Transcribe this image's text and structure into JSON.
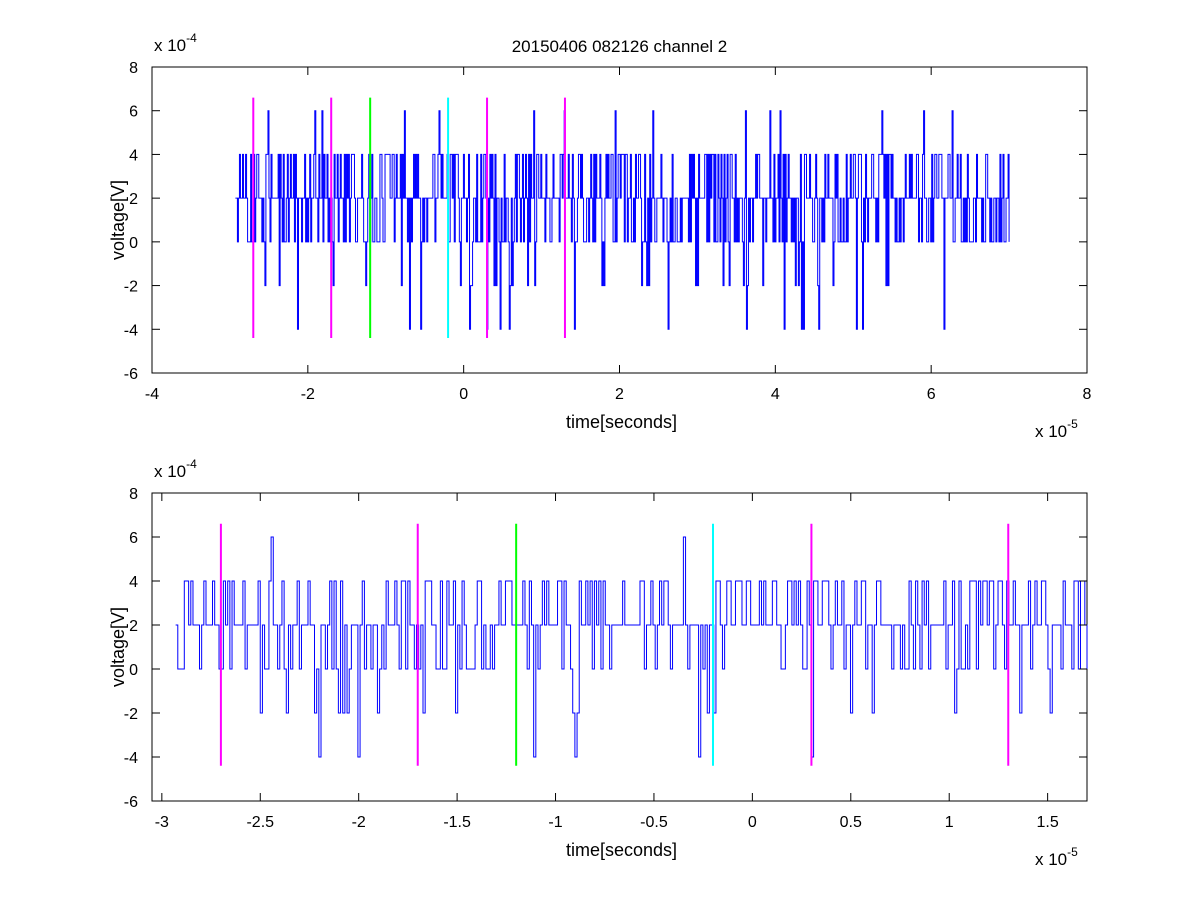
{
  "chart_data": [
    {
      "type": "line",
      "title": "20150406 082126 channel 2",
      "xlabel": "time[seconds]",
      "ylabel": "voltage[V]",
      "x_exponent_base": "x 10",
      "x_exponent_power": "-5",
      "y_exponent_base": "x 10",
      "y_exponent_power": "-4",
      "xlim": [
        -4,
        8
      ],
      "ylim": [
        -6,
        8
      ],
      "xticks": [
        -4,
        -2,
        0,
        2,
        4,
        6,
        8
      ],
      "xtick_labels": [
        "-4",
        "-2",
        "0",
        "2",
        "4",
        "6",
        "8"
      ],
      "yticks": [
        -6,
        -4,
        -2,
        0,
        2,
        4,
        6,
        8
      ],
      "ytick_labels": [
        "-6",
        "-4",
        "-2",
        "0",
        "2",
        "4",
        "6",
        "8"
      ],
      "grid": false,
      "series": [
        {
          "color": "#0000ff",
          "x_range": [
            -2.93,
            7.0
          ],
          "levels": [
            -4,
            -2,
            0,
            2,
            4,
            6
          ],
          "description_values": "noisy step signal, mostly between 0 and 4, occasional spikes to -2, -4 and 6"
        }
      ],
      "vertical_markers": [
        {
          "x": -2.7,
          "y_range": [
            -4.4,
            6.6
          ],
          "color": "#ff00ff"
        },
        {
          "x": -1.7,
          "y_range": [
            -4.4,
            6.6
          ],
          "color": "#ff00ff"
        },
        {
          "x": -1.2,
          "y_range": [
            -4.4,
            6.6
          ],
          "color": "#00ff00"
        },
        {
          "x": -0.2,
          "y_range": [
            -4.4,
            6.6
          ],
          "color": "#00ffff"
        },
        {
          "x": 0.3,
          "y_range": [
            -4.4,
            6.6
          ],
          "color": "#ff00ff"
        },
        {
          "x": 1.3,
          "y_range": [
            -4.4,
            6.6
          ],
          "color": "#ff00ff"
        }
      ]
    },
    {
      "type": "line",
      "xlabel": "time[seconds]",
      "ylabel": "voltage[V]",
      "x_exponent_base": "x 10",
      "x_exponent_power": "-5",
      "y_exponent_base": "x 10",
      "y_exponent_power": "-4",
      "xlim": [
        -3.05,
        1.7
      ],
      "ylim": [
        -6,
        8
      ],
      "xticks": [
        -3,
        -2.5,
        -2,
        -1.5,
        -1,
        -0.5,
        0,
        0.5,
        1,
        1.5
      ],
      "xtick_labels": [
        "-3",
        "-2.5",
        "-2",
        "-1.5",
        "-1",
        "-0.5",
        "0",
        "0.5",
        "1",
        "1.5"
      ],
      "yticks": [
        -6,
        -4,
        -2,
        0,
        2,
        4,
        6,
        8
      ],
      "ytick_labels": [
        "-6",
        "-4",
        "-2",
        "0",
        "2",
        "4",
        "6",
        "8"
      ],
      "grid": false,
      "series": [
        {
          "color": "#0000ff",
          "x_range": [
            -2.93,
            1.7
          ],
          "levels": [
            -4,
            -2,
            0,
            2,
            4,
            6
          ]
        }
      ],
      "vertical_markers": [
        {
          "x": -2.7,
          "y_range": [
            -4.4,
            6.6
          ],
          "color": "#ff00ff"
        },
        {
          "x": -1.7,
          "y_range": [
            -4.4,
            6.6
          ],
          "color": "#ff00ff"
        },
        {
          "x": -1.2,
          "y_range": [
            -4.4,
            6.6
          ],
          "color": "#00ff00"
        },
        {
          "x": -0.2,
          "y_range": [
            -4.4,
            6.6
          ],
          "color": "#00ffff"
        },
        {
          "x": 0.3,
          "y_range": [
            -4.4,
            6.6
          ],
          "color": "#ff00ff"
        },
        {
          "x": 1.3,
          "y_range": [
            -4.4,
            6.6
          ],
          "color": "#ff00ff"
        }
      ]
    }
  ]
}
